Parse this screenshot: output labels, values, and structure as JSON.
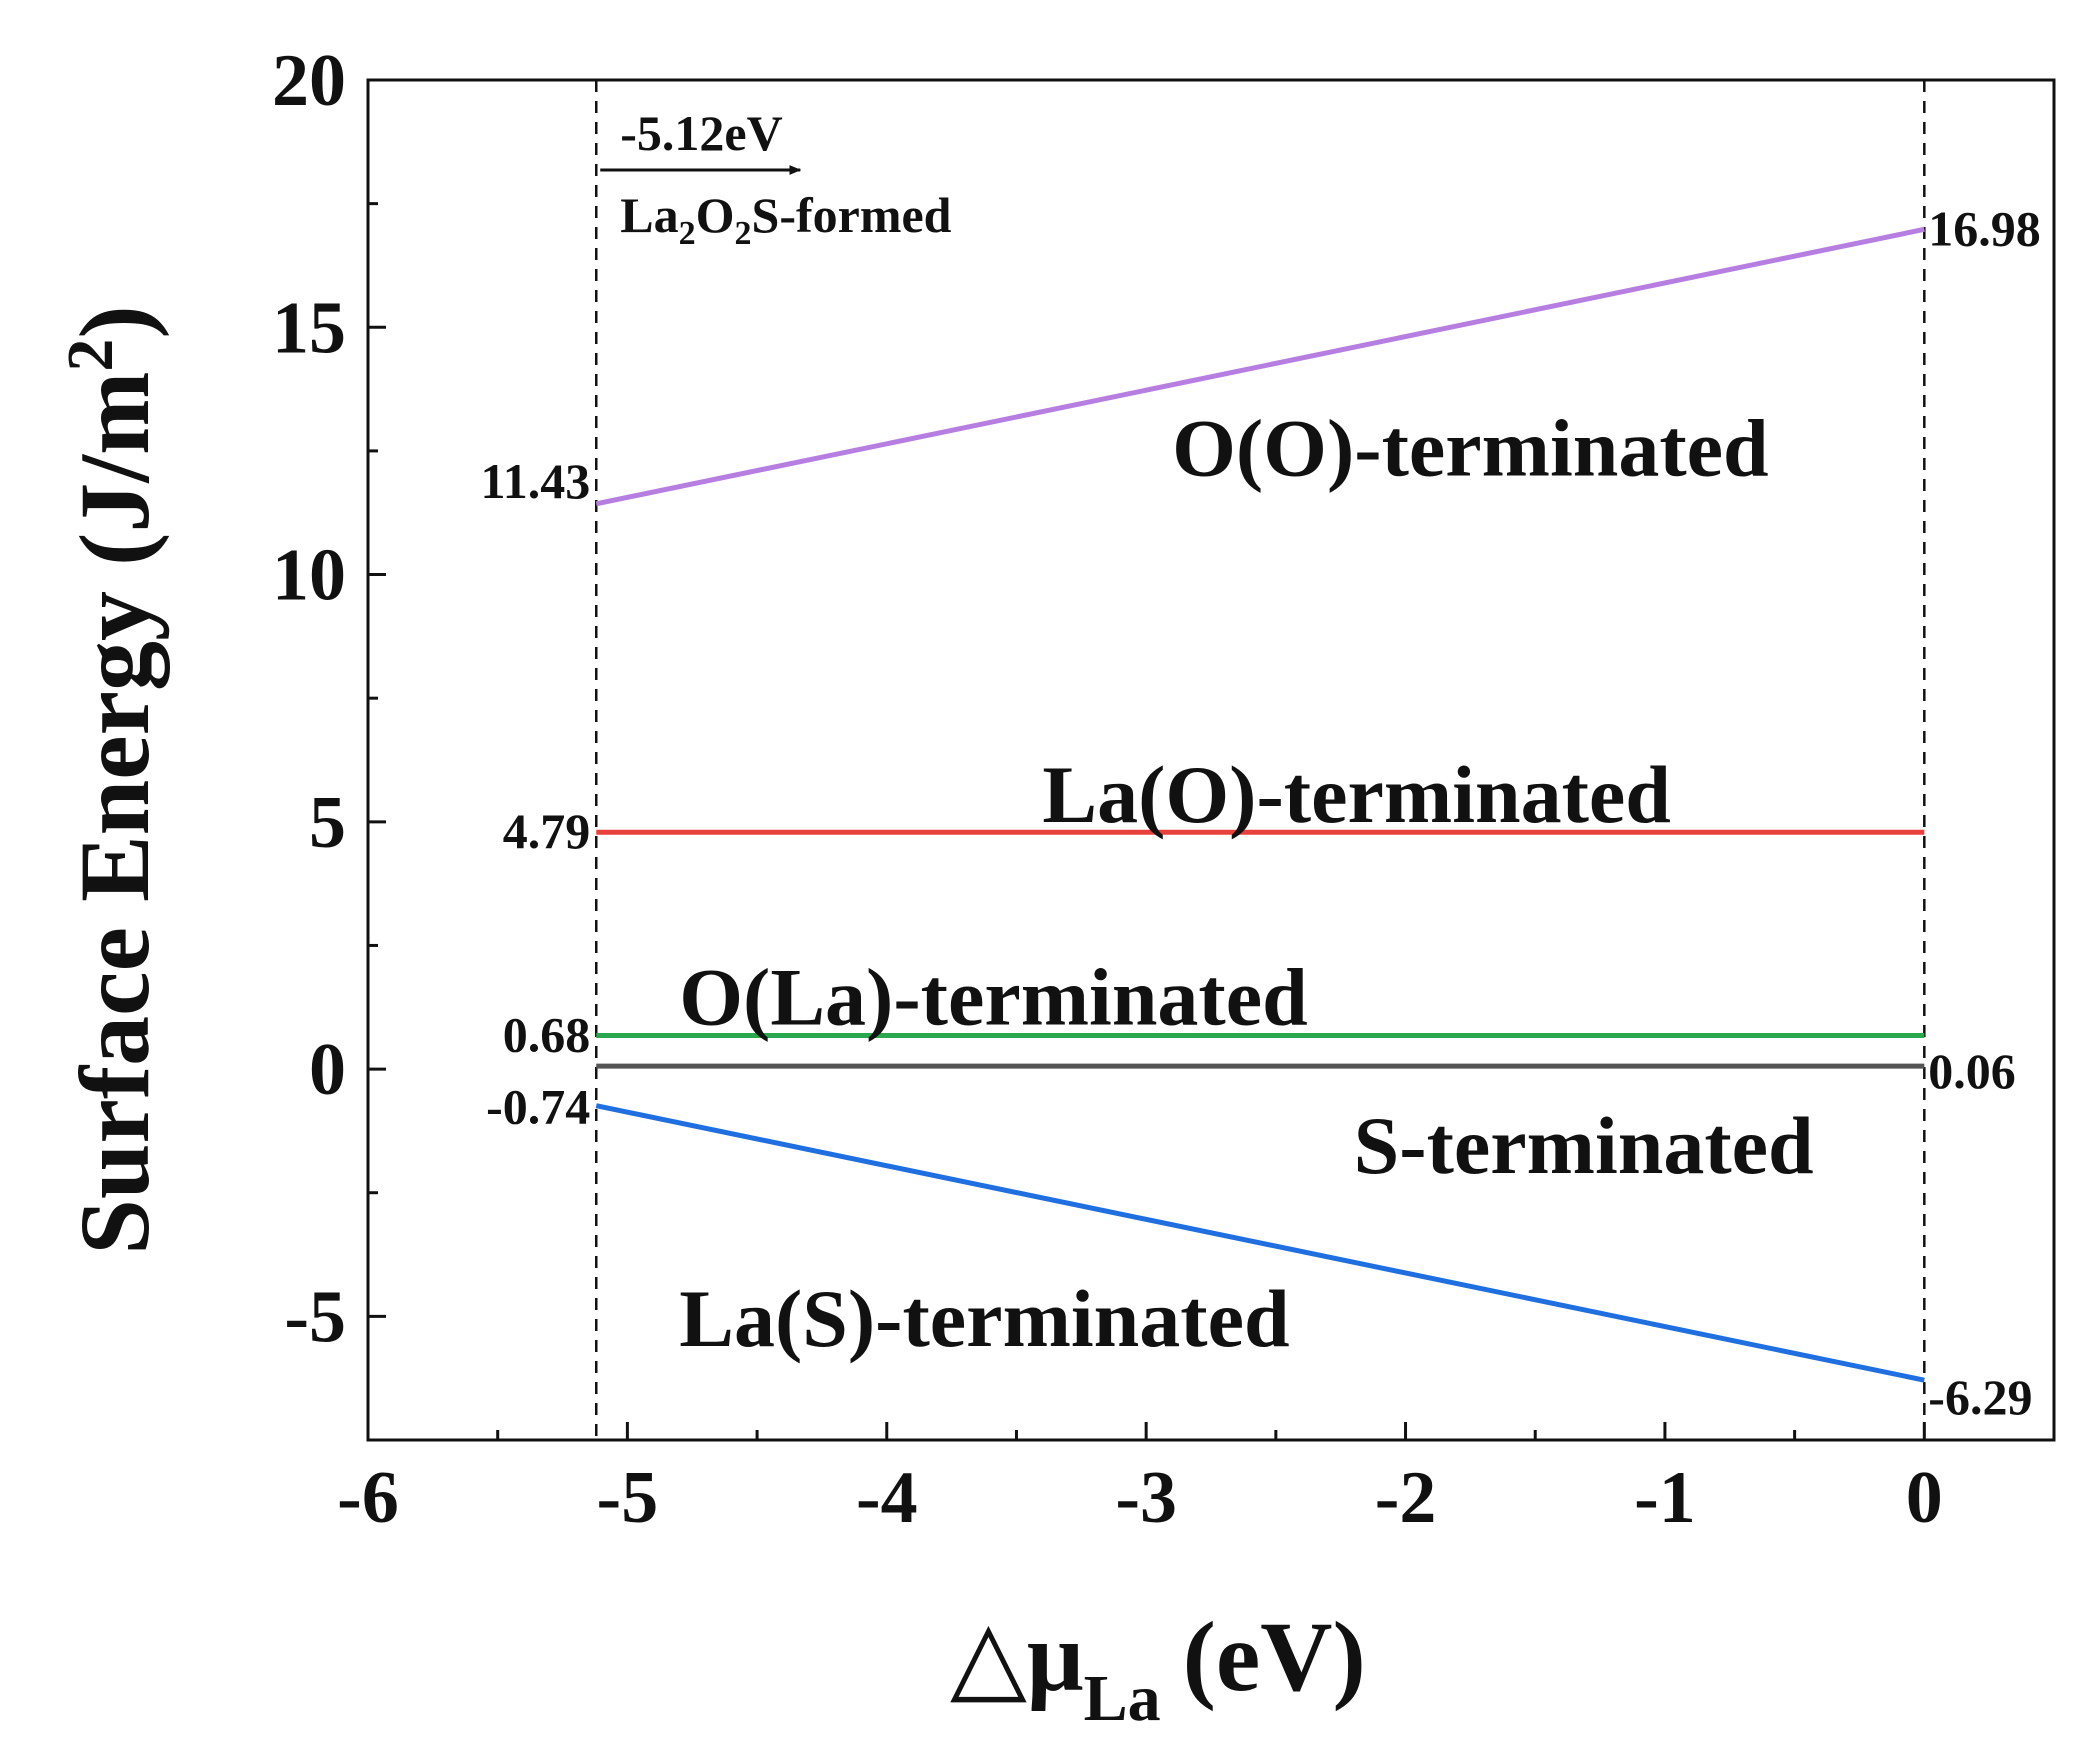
{
  "chart_data": {
    "type": "line",
    "title": "",
    "xlabel": "△μ",
    "xlabel_sub": "La",
    "xlabel_unit": "(eV)",
    "ylabel": "Surface Energy (J/m",
    "ylabel_sup": "2",
    "ylabel_close": ")",
    "xlim": [
      -6,
      0.5
    ],
    "ylim": [
      -7.5,
      20
    ],
    "xticks": [
      -6,
      -5,
      -4,
      -3,
      -2,
      -1,
      0
    ],
    "xtick_labels": [
      "-6",
      "-5",
      "-4",
      "-3",
      "-2",
      "-1",
      "0"
    ],
    "yticks": [
      -5,
      0,
      5,
      10,
      15,
      20
    ],
    "ytick_labels": [
      "-5",
      "0",
      "5",
      "10",
      "15",
      "20"
    ],
    "grid": false,
    "series": [
      {
        "name": "O(O)-terminated",
        "x": [
          -5.12,
          0
        ],
        "y": [
          11.43,
          16.98
        ],
        "color": "#b57ee0",
        "start_label": "11.43",
        "end_label": "16.98"
      },
      {
        "name": "La(O)-terminated",
        "x": [
          -5.12,
          0
        ],
        "y": [
          4.79,
          4.79
        ],
        "color": "#e8403c",
        "start_label": "4.79",
        "end_label": ""
      },
      {
        "name": "O(La)-terminated",
        "x": [
          -5.12,
          0
        ],
        "y": [
          0.68,
          0.68
        ],
        "color": "#2aa84f",
        "start_label": "0.68",
        "end_label": ""
      },
      {
        "name": "S-terminated",
        "x": [
          -5.12,
          0
        ],
        "y": [
          0.06,
          0.06
        ],
        "color": "#555555",
        "start_label": "",
        "end_label": "0.06"
      },
      {
        "name": "La(S)-terminated",
        "x": [
          -5.12,
          0
        ],
        "y": [
          -0.74,
          -6.29
        ],
        "color": "#1f6fe0",
        "start_label": "-0.74",
        "end_label": "-6.29"
      }
    ],
    "reference_lines": [
      {
        "axis": "x",
        "value": -5.12,
        "style": "dashed"
      },
      {
        "axis": "x",
        "value": 0,
        "style": "dashed"
      }
    ],
    "annotations": {
      "arrow_label": "-5.12eV",
      "formed_label_main": "La",
      "formed_sub1": "2",
      "formed_mid": "O",
      "formed_sub2": "2",
      "formed_tail": "S-formed"
    }
  }
}
